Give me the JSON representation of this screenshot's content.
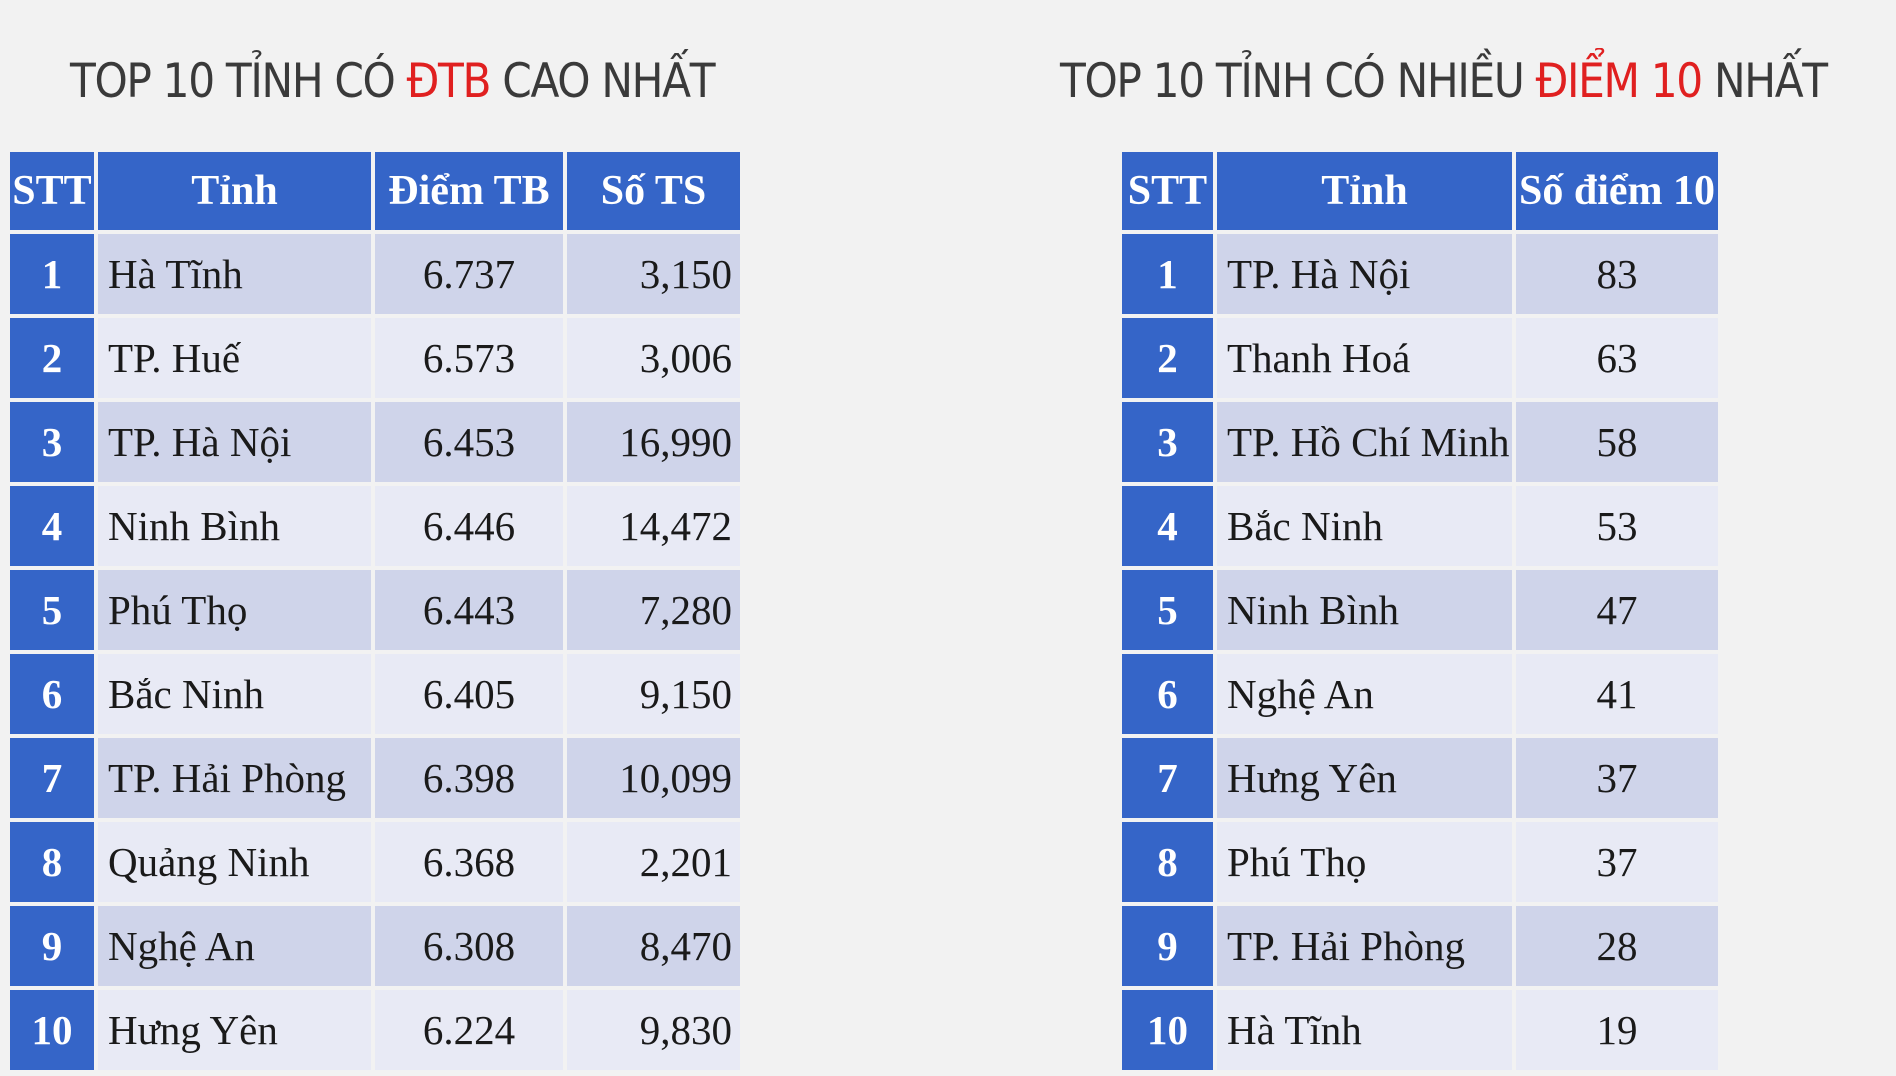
{
  "left": {
    "title_pre": "TOP 10 TỈNH CÓ ",
    "title_hl": "ĐTB",
    "title_post": " CAO NHẤT",
    "headers": [
      "STT",
      "Tỉnh",
      "Điểm TB",
      "Số TS"
    ],
    "rows": [
      {
        "stt": "1",
        "name": "Hà Tĩnh",
        "score": "6.737",
        "count": "3,150"
      },
      {
        "stt": "2",
        "name": "TP. Huế",
        "score": "6.573",
        "count": "3,006"
      },
      {
        "stt": "3",
        "name": "TP. Hà Nội",
        "score": "6.453",
        "count": "16,990"
      },
      {
        "stt": "4",
        "name": "Ninh Bình",
        "score": "6.446",
        "count": "14,472"
      },
      {
        "stt": "5",
        "name": "Phú Thọ",
        "score": "6.443",
        "count": "7,280"
      },
      {
        "stt": "6",
        "name": "Bắc Ninh",
        "score": "6.405",
        "count": "9,150"
      },
      {
        "stt": "7",
        "name": "TP. Hải Phòng",
        "score": "6.398",
        "count": "10,099"
      },
      {
        "stt": "8",
        "name": "Quảng Ninh",
        "score": "6.368",
        "count": "2,201"
      },
      {
        "stt": "9",
        "name": "Nghệ An",
        "score": "6.308",
        "count": "8,470"
      },
      {
        "stt": "10",
        "name": "Hưng Yên",
        "score": "6.224",
        "count": "9,830"
      }
    ]
  },
  "right": {
    "title_pre": "TOP 10 TỈNH CÓ NHIỀU ",
    "title_hl": "ĐIỂM 10",
    "title_post": " NHẤT",
    "headers": [
      "STT",
      "Tỉnh",
      "Số điểm 10"
    ],
    "rows": [
      {
        "stt": "1",
        "name": "TP. Hà Nội",
        "tens": "83"
      },
      {
        "stt": "2",
        "name": "Thanh Hoá",
        "tens": "63"
      },
      {
        "stt": "3",
        "name": "TP. Hồ Chí Minh",
        "tens": "58"
      },
      {
        "stt": "4",
        "name": "Bắc Ninh",
        "tens": "53"
      },
      {
        "stt": "5",
        "name": "Ninh Bình",
        "tens": "47"
      },
      {
        "stt": "6",
        "name": "Nghệ An",
        "tens": "41"
      },
      {
        "stt": "7",
        "name": "Hưng Yên",
        "tens": "37"
      },
      {
        "stt": "8",
        "name": "Phú Thọ",
        "tens": "37"
      },
      {
        "stt": "9",
        "name": "TP. Hải Phòng",
        "tens": "28"
      },
      {
        "stt": "10",
        "name": "Hà Tĩnh",
        "tens": "19"
      }
    ]
  },
  "colors": {
    "header_bg": "#3565c8",
    "row_odd": "#cfd4ea",
    "row_even": "#e8eaf5",
    "highlight": "#e02020",
    "title_text": "#3a3a3a"
  }
}
